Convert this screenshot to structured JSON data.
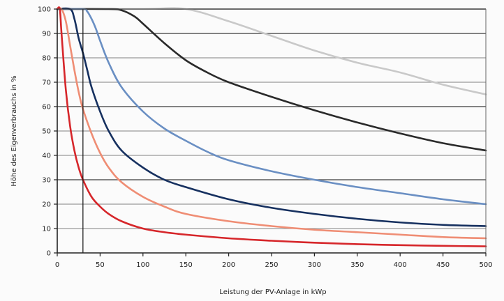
{
  "chart_data": {
    "type": "line",
    "title": "",
    "xlabel": "Leistung der PV-Anlage in kWp",
    "ylabel": "Höhe des Eigenverbrauchs in %",
    "xlim": [
      0,
      500
    ],
    "ylim": [
      0,
      100
    ],
    "x_ticks": [
      0,
      50,
      100,
      150,
      200,
      250,
      300,
      350,
      400,
      450,
      500
    ],
    "y_ticks": [
      0,
      10,
      20,
      30,
      40,
      50,
      60,
      70,
      80,
      90,
      100
    ],
    "grid": "horizontal",
    "legend": "none",
    "reference_line_x": 30,
    "series": [
      {
        "color": "#c9c9c9",
        "x": [
          0,
          100,
          150,
          200,
          250,
          300,
          350,
          400,
          450,
          500
        ],
        "y": [
          100,
          100,
          100,
          95,
          89,
          83,
          78,
          74,
          69,
          65
        ]
      },
      {
        "color": "#2a2a2a",
        "x": [
          0,
          60,
          75,
          90,
          100,
          125,
          150,
          175,
          200,
          250,
          300,
          350,
          400,
          450,
          500
        ],
        "y": [
          100,
          100,
          99.5,
          97,
          94,
          86,
          79,
          74,
          70,
          64,
          58.5,
          53.5,
          49,
          45,
          42
        ]
      },
      {
        "color": "#6a8fc3",
        "x": [
          0,
          30,
          35,
          40,
          45,
          50,
          60,
          75,
          100,
          125,
          150,
          175,
          200,
          250,
          300,
          350,
          400,
          450,
          500
        ],
        "y": [
          100,
          100,
          99,
          96,
          92,
          87,
          78,
          68,
          58,
          51,
          46,
          41.5,
          38,
          33.5,
          30,
          27,
          24.5,
          22,
          20
        ]
      },
      {
        "color": "#16305f",
        "x": [
          0,
          15,
          20,
          25,
          30,
          35,
          40,
          50,
          60,
          75,
          100,
          125,
          150,
          200,
          250,
          300,
          350,
          400,
          450,
          500
        ],
        "y": [
          100,
          100,
          96,
          88,
          82,
          75,
          68,
          58,
          50,
          42,
          35,
          30,
          27,
          22,
          18.5,
          16,
          14,
          12.5,
          11.5,
          11
        ]
      },
      {
        "color": "#ef8d74",
        "x": [
          0,
          5,
          10,
          15,
          20,
          25,
          30,
          40,
          50,
          60,
          75,
          100,
          125,
          150,
          200,
          250,
          300,
          350,
          400,
          450,
          500
        ],
        "y": [
          100,
          100,
          95,
          85,
          75,
          66,
          59,
          49,
          41,
          35,
          29,
          23,
          19,
          16,
          13,
          11,
          9.5,
          8.5,
          7.5,
          6.5,
          6
        ]
      },
      {
        "color": "#d6262a",
        "x": [
          0,
          3,
          5,
          10,
          15,
          20,
          25,
          30,
          40,
          50,
          60,
          75,
          100,
          125,
          150,
          200,
          250,
          300,
          350,
          400,
          450,
          500
        ],
        "y": [
          100,
          100,
          90,
          67,
          52,
          42,
          35,
          30,
          23,
          19,
          16,
          13,
          10,
          8.5,
          7.5,
          6,
          5,
          4.2,
          3.6,
          3.2,
          2.9,
          2.7
        ]
      }
    ]
  }
}
